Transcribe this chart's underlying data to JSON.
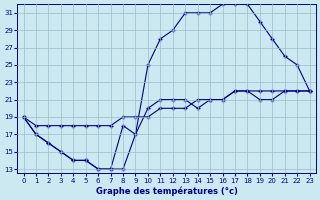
{
  "xlabel": "Graphe des températures (°c)",
  "xlim_min": -0.5,
  "xlim_max": 23.5,
  "ylim_min": 12.5,
  "ylim_max": 32.0,
  "yticks": [
    13,
    15,
    17,
    19,
    21,
    23,
    25,
    27,
    29,
    31
  ],
  "xticks": [
    0,
    1,
    2,
    3,
    4,
    5,
    6,
    7,
    8,
    9,
    10,
    11,
    12,
    13,
    14,
    15,
    16,
    17,
    18,
    19,
    20,
    21,
    22,
    23
  ],
  "bg_color": "#cce8f0",
  "line_color": "#00008b",
  "grid_color": "#9bbfcc",
  "line1_x": [
    0,
    1,
    2,
    3,
    4,
    5,
    6,
    7,
    8,
    9,
    10,
    11,
    12,
    13,
    14,
    15,
    16,
    17,
    18,
    19,
    20,
    21,
    22,
    23
  ],
  "line1_y": [
    19,
    17,
    16,
    15,
    14,
    14,
    13,
    13,
    13,
    17,
    20,
    21,
    21,
    21,
    20,
    21,
    21,
    22,
    22,
    21,
    21,
    22,
    22,
    22
  ],
  "line2_x": [
    0,
    1,
    2,
    3,
    4,
    5,
    6,
    7,
    8,
    9,
    10,
    11,
    12,
    13,
    14,
    15,
    16,
    17,
    18,
    19,
    20,
    21,
    22,
    23
  ],
  "line2_y": [
    19,
    17,
    16,
    15,
    14,
    14,
    13,
    13,
    18,
    17,
    25,
    28,
    29,
    31,
    31,
    31,
    32,
    32,
    32,
    30,
    28,
    26,
    25,
    22
  ],
  "line3_x": [
    0,
    1,
    2,
    3,
    4,
    5,
    6,
    7,
    8,
    9,
    10,
    11,
    12,
    13,
    14,
    15,
    16,
    17,
    18,
    19,
    20,
    21,
    22,
    23
  ],
  "line3_y": [
    19,
    18,
    18,
    18,
    18,
    18,
    18,
    18,
    19,
    19,
    19,
    20,
    20,
    20,
    21,
    21,
    21,
    22,
    22,
    22,
    22,
    22,
    22,
    22
  ]
}
